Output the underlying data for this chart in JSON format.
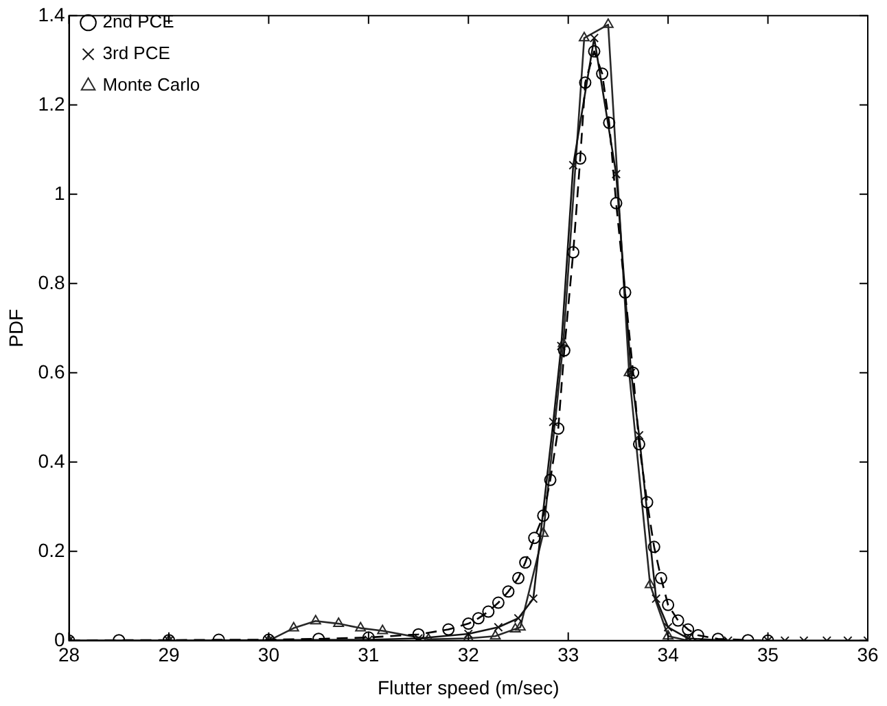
{
  "chart_data": {
    "type": "line",
    "xlabel": "Flutter speed (m/sec)",
    "ylabel": "PDF",
    "xlim": [
      28,
      36
    ],
    "xticks": [
      28,
      29,
      30,
      31,
      32,
      33,
      34,
      35,
      36
    ],
    "ylim": [
      0,
      1.4
    ],
    "yticks": [
      0,
      0.2,
      0.4,
      0.6,
      0.8,
      1,
      1.2,
      1.4
    ],
    "grid": false,
    "legend": "top left",
    "series": [
      {
        "name": "2nd PCE",
        "color": "#000000",
        "marker": "circle",
        "line_style": "dashed",
        "x": [
          28,
          28.5,
          29,
          29.5,
          30,
          30.5,
          31,
          31.5,
          31.8,
          32,
          32.1,
          32.2,
          32.3,
          32.4,
          32.5,
          32.57,
          32.66,
          32.75,
          32.82,
          32.9,
          32.96,
          33.05,
          33.12,
          33.17,
          33.26,
          33.34,
          33.41,
          33.48,
          33.57,
          33.65,
          33.71,
          33.79,
          33.86,
          33.93,
          34,
          34.1,
          34.2,
          34.3,
          34.5,
          34.8,
          35
        ],
        "values": [
          0,
          0.001,
          0.001,
          0.002,
          0.002,
          0.004,
          0.007,
          0.014,
          0.025,
          0.038,
          0.05,
          0.065,
          0.085,
          0.11,
          0.14,
          0.175,
          0.23,
          0.28,
          0.36,
          0.475,
          0.65,
          0.87,
          1.08,
          1.25,
          1.32,
          1.27,
          1.16,
          0.98,
          0.78,
          0.6,
          0.44,
          0.31,
          0.21,
          0.14,
          0.08,
          0.045,
          0.025,
          0.012,
          0.004,
          0.001,
          0
        ]
      },
      {
        "name": "3rd PCE",
        "color": "#141414",
        "marker": "cross",
        "line_style": "solid",
        "x": [
          28,
          29,
          30,
          31,
          31.5,
          32,
          32.3,
          32.5,
          32.65,
          32.85,
          32.93,
          33.05,
          33.26,
          33.48,
          33.63,
          33.71,
          33.88,
          34,
          34.2,
          34.6,
          35,
          35.17,
          35.36,
          35.59,
          35.8,
          36
        ],
        "values": [
          0,
          0,
          0.001,
          0.002,
          0.005,
          0.015,
          0.03,
          0.05,
          0.094,
          0.49,
          0.66,
          1.065,
          1.35,
          1.045,
          0.6,
          0.46,
          0.094,
          0.03,
          0.005,
          0,
          0,
          0,
          0,
          0,
          0,
          0
        ]
      },
      {
        "name": "Monte Carlo",
        "color": "#282828",
        "marker": "triangle",
        "line_style": "solid",
        "x": [
          28,
          29,
          30,
          30.25,
          30.47,
          30.7,
          30.92,
          31.14,
          31.6,
          32,
          32.27,
          32.47,
          32.52,
          32.75,
          32.95,
          33.16,
          33.4,
          33.61,
          33.82,
          34,
          34.2
        ],
        "values": [
          0,
          0,
          0,
          0.028,
          0.044,
          0.038,
          0.028,
          0.022,
          0.003,
          0.005,
          0.01,
          0.026,
          0.03,
          0.24,
          0.665,
          1.35,
          1.38,
          0.6,
          0.125,
          0.01,
          0
        ]
      }
    ]
  }
}
